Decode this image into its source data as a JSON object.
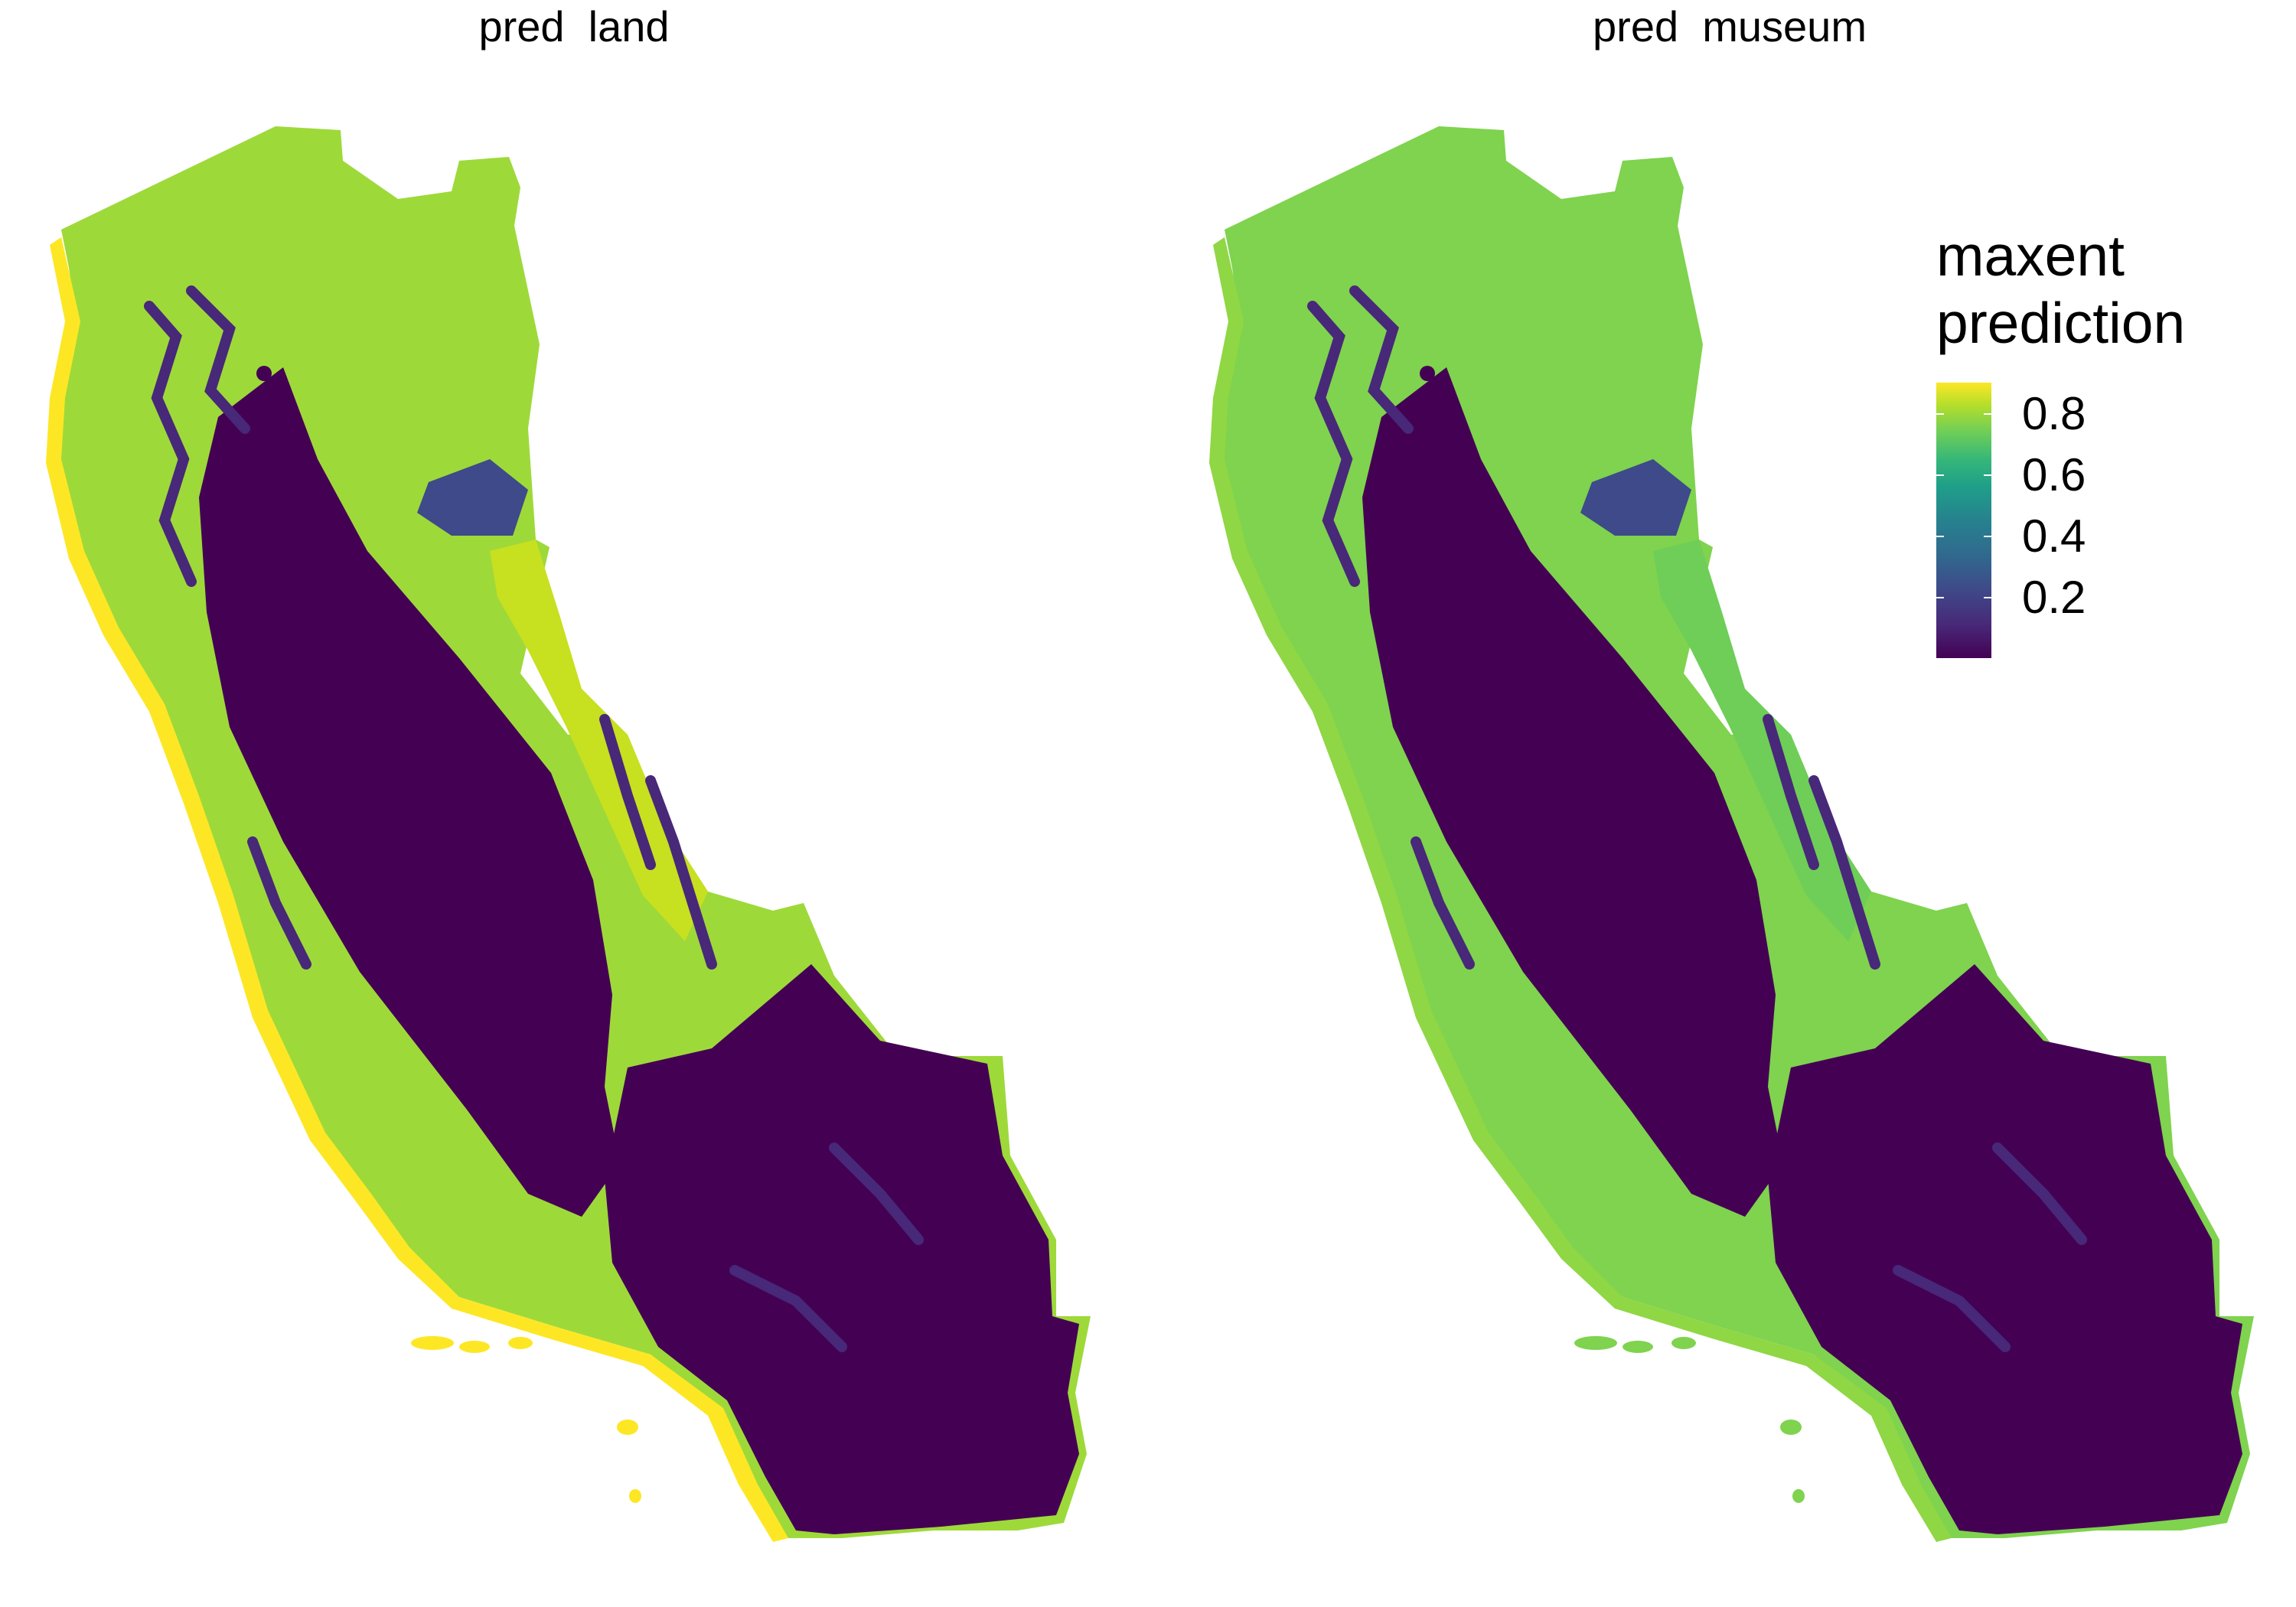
{
  "panels": [
    {
      "title": "pred  land"
    },
    {
      "title": "pred  museum"
    }
  ],
  "legend": {
    "title_line1": "maxent",
    "title_line2": "prediction",
    "ticks": [
      "0.8",
      "0.6",
      "0.4",
      "0.2"
    ],
    "tick_values": [
      0.8,
      0.6,
      0.4,
      0.2
    ],
    "range": [
      0.0,
      0.9
    ],
    "palette": [
      "#440154",
      "#3e4a89",
      "#26828e",
      "#35b779",
      "#b5de2b",
      "#fde725"
    ]
  },
  "colors": {
    "low": "#440154",
    "mid_blue": "#31688e",
    "teal": "#21918c",
    "green": "#5ec962",
    "lime": "#b5de2b",
    "yellow": "#fde725",
    "background": "#ffffff"
  }
}
